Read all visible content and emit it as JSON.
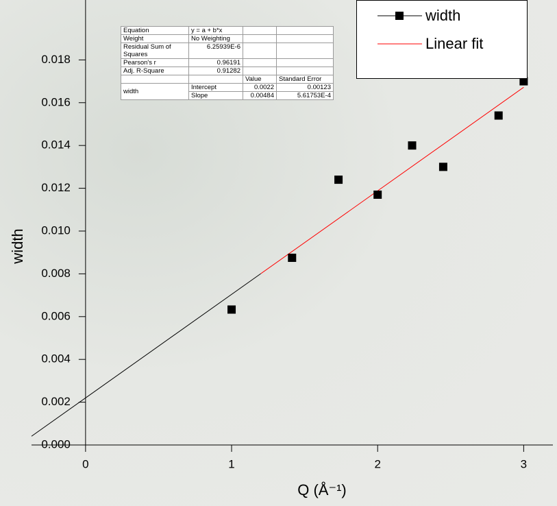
{
  "chart_data": {
    "type": "scatter",
    "x_label": "Q (Å⁻¹)",
    "y_label": "width",
    "x": [
      1.0,
      1.414,
      1.732,
      2.0,
      2.236,
      2.449,
      2.828,
      3.0
    ],
    "series": [
      {
        "name": "width",
        "color": "#000000",
        "values": [
          0.00633,
          0.00875,
          0.0124,
          0.0117,
          0.014,
          0.013,
          0.0154,
          0.017
        ]
      }
    ],
    "fit": {
      "name": "Linear fit",
      "color": "#ff0000"
    },
    "xlim": [
      -0.37,
      3.2
    ],
    "ylim": [
      0,
      0.0208
    ],
    "xticks": [
      0,
      1,
      2,
      3
    ],
    "yticks": [
      {
        "value": 0,
        "label": "0.000"
      },
      0.002,
      0.004,
      0.006,
      0.008,
      {
        "value": 0.01,
        "label": "0.010"
      },
      0.012,
      0.014,
      0.016,
      0.018
    ],
    "fit_table": {
      "stats": [
        [
          "Equation",
          "y = a + b*x"
        ],
        [
          "Weight",
          "No Weighting"
        ],
        [
          "Residual Sum of Squares",
          "6.25939E-6"
        ],
        [
          "Pearson's r",
          "0.96191"
        ],
        [
          "Adj. R-Square",
          "0.91282"
        ]
      ],
      "param_header": [
        "Value",
        "Standard Error"
      ],
      "param_group": "width",
      "params": [
        [
          "Intercept",
          "0.0022",
          "0.00123"
        ],
        [
          "Slope",
          "0.00484",
          "5.61753E-4"
        ]
      ]
    }
  }
}
